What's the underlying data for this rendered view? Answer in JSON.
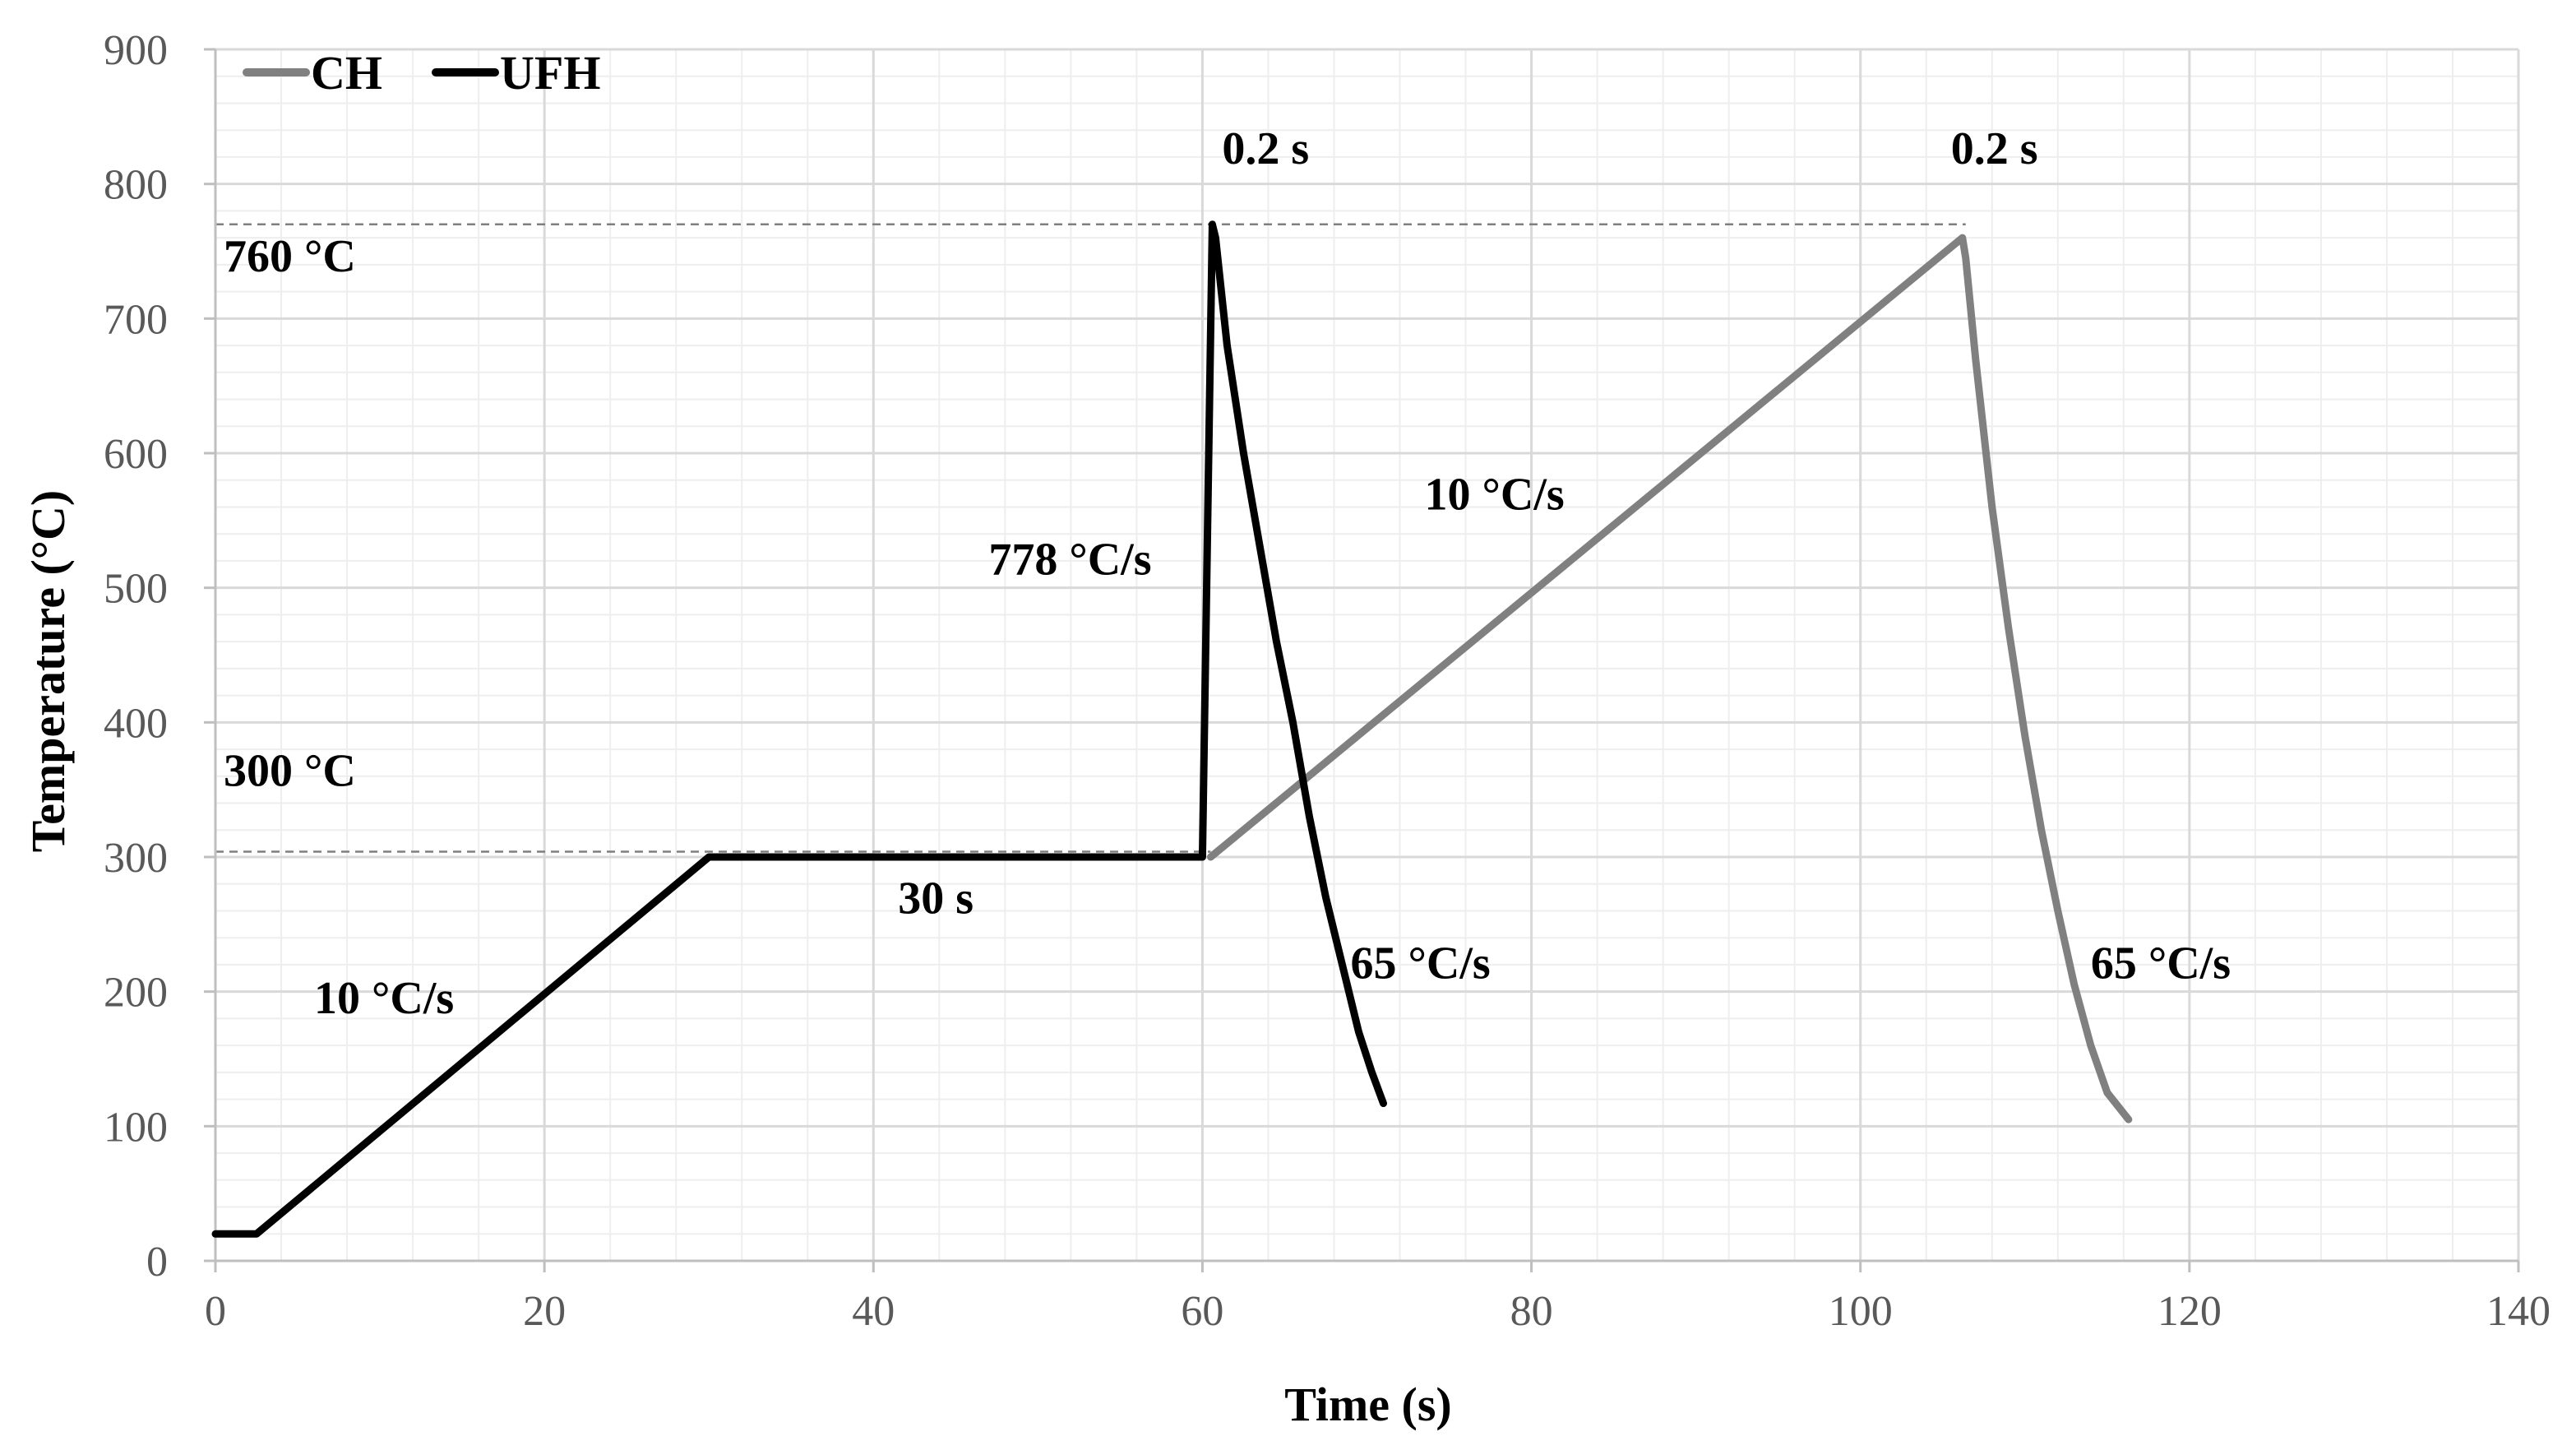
{
  "chart_data": {
    "type": "line",
    "title": "",
    "xlabel": "Time (s)",
    "ylabel": "Temperature (°C)",
    "xlim": [
      0,
      140
    ],
    "ylim": [
      0,
      900
    ],
    "xticks": [
      0,
      20,
      40,
      60,
      80,
      100,
      120,
      140
    ],
    "yticks": [
      0,
      100,
      200,
      300,
      400,
      500,
      600,
      700,
      800,
      900
    ],
    "x_minor_step": 4,
    "y_minor_step": 20,
    "grid": true,
    "legend_position": "top-left",
    "colors": {
      "CH": "#808080",
      "UFH": "#000000",
      "grid_major": "#d9d9d9",
      "grid_minor": "#eeeeee",
      "axis": "#bfbfbf",
      "ref_line": "#7f7f7f"
    },
    "series": [
      {
        "name": "UFH",
        "x": [
          0,
          2.5,
          30,
          60,
          60.6,
          60.8,
          61.5,
          62.5,
          63.5,
          64.5,
          65.5,
          66.5,
          67.5,
          68.5,
          69.5,
          70.3,
          71
        ],
        "y": [
          20,
          20,
          300,
          300,
          770,
          760,
          680,
          600,
          530,
          460,
          400,
          330,
          270,
          220,
          170,
          140,
          117
        ]
      },
      {
        "name": "CH",
        "x": [
          60.5,
          106.2,
          106.4,
          107,
          108,
          109,
          110,
          111,
          112,
          113,
          114,
          115,
          116.3
        ],
        "y": [
          300,
          760,
          745,
          670,
          560,
          470,
          390,
          320,
          260,
          205,
          160,
          125,
          105
        ]
      }
    ],
    "reference_lines": [
      {
        "x_start": 0,
        "x_end": 106.4,
        "y": 770
      },
      {
        "x_start": 0,
        "x_end": 60.5,
        "y": 304
      }
    ],
    "annotations": [
      {
        "text": "0.2 s",
        "x": 61.2,
        "y": 815
      },
      {
        "text": "0.2 s",
        "x": 105.5,
        "y": 815
      },
      {
        "text": "760 °C",
        "x": 0.5,
        "y": 735
      },
      {
        "text": "300 °C",
        "x": 0.5,
        "y": 353
      },
      {
        "text": "778 °C/s",
        "x": 47,
        "y": 510
      },
      {
        "text": "10 °C/s",
        "x": 73.5,
        "y": 558
      },
      {
        "text": "30 s",
        "x": 41.5,
        "y": 258
      },
      {
        "text": "10 °C/s",
        "x": 6,
        "y": 184
      },
      {
        "text": "65 °C/s",
        "x": 69,
        "y": 210
      },
      {
        "text": "65 °C/s",
        "x": 114,
        "y": 210
      }
    ]
  }
}
